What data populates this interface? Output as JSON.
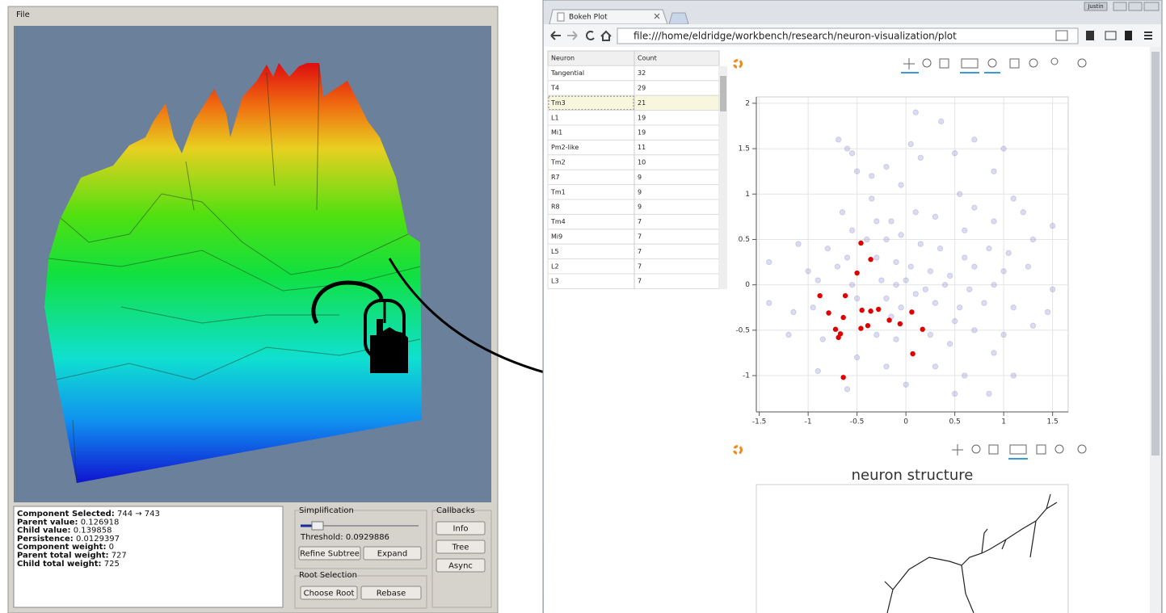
{
  "app": {
    "menu": "File",
    "info": [
      [
        "Component Selected:",
        "744 → 743"
      ],
      [
        "Parent value:",
        "0.126918"
      ],
      [
        "Child value:",
        "0.139858"
      ],
      [
        "Persistence:",
        "0.0129397"
      ],
      [
        "Component weight:",
        "0"
      ],
      [
        "Parent total weight:",
        "727"
      ],
      [
        "Child total weight:",
        "725"
      ]
    ],
    "simplification": {
      "title": "Simplification",
      "threshold_label": "Threshold:",
      "threshold": "0.0929886",
      "buttons": [
        "Refine Subtree",
        "Expand"
      ]
    },
    "root_selection": {
      "title": "Root Selection",
      "buttons": [
        "Choose Root",
        "Rebase"
      ]
    },
    "callbacks": {
      "title": "Callbacks",
      "buttons": [
        "Info",
        "Tree",
        "Async"
      ]
    }
  },
  "browser": {
    "user": "Justin",
    "tab": "Bokeh Plot",
    "url": "file:///home/eldridge/workbench/research/neuron-visualization/plot"
  },
  "table": {
    "headers": [
      "Neuron",
      "Count"
    ],
    "rows": [
      [
        "Tangential",
        "32"
      ],
      [
        "T4",
        "29"
      ],
      [
        "Tm3",
        "21"
      ],
      [
        "L1",
        "19"
      ],
      [
        "Mi1",
        "19"
      ],
      [
        "Pm2-like",
        "11"
      ],
      [
        "Tm2",
        "10"
      ],
      [
        "R7",
        "9"
      ],
      [
        "Tm1",
        "9"
      ],
      [
        "R8",
        "9"
      ],
      [
        "Tm4",
        "7"
      ],
      [
        "Mi9",
        "7"
      ],
      [
        "L5",
        "7"
      ],
      [
        "L2",
        "7"
      ],
      [
        "L3",
        "7"
      ]
    ]
  },
  "chart_data": {
    "type": "scatter",
    "xlim": [
      -1.53,
      1.66
    ],
    "ylim": [
      -1.4,
      2.07
    ],
    "xticks": [
      -1.5,
      -1,
      -0.5,
      0,
      0.5,
      1,
      1.5
    ],
    "yticks": [
      -1,
      -0.5,
      0,
      0.5,
      1,
      1.5,
      2
    ],
    "grid": true,
    "series": [
      {
        "color": "#8080c8",
        "x": [
          0.1,
          0.36,
          -0.69,
          -0.6,
          -0.55,
          -0.5,
          -0.35,
          -0.2,
          0.05,
          0.15,
          0.5,
          0.7,
          1.0,
          0.9,
          -0.05,
          -0.35,
          0.55,
          0.7,
          1.1,
          -0.65,
          -0.55,
          -0.3,
          -0.15,
          0.1,
          0.3,
          0.6,
          0.9,
          1.2,
          1.5,
          -1.1,
          -0.8,
          -0.6,
          -0.4,
          -0.2,
          -0.05,
          0.15,
          0.35,
          0.6,
          0.85,
          1.05,
          1.3,
          -1.4,
          -1.0,
          -0.7,
          -0.3,
          -0.1,
          0.05,
          0.25,
          0.45,
          0.7,
          1.0,
          1.25,
          -0.9,
          -0.55,
          -0.25,
          -0.1,
          0.0,
          0.2,
          0.4,
          0.65,
          0.9,
          1.5,
          -1.4,
          -1.15,
          -0.95,
          -0.5,
          -0.2,
          0.1,
          0.3,
          0.55,
          0.8,
          1.1,
          1.45,
          -1.2,
          -0.85,
          -0.3,
          -0.1,
          0.25,
          0.45,
          0.7,
          1.0,
          1.3,
          -0.9,
          -0.5,
          -0.2,
          0.0,
          0.3,
          0.6,
          0.9,
          1.1,
          -0.6,
          0.5,
          0.85,
          -0.15,
          -0.05,
          0.5
        ],
        "y": [
          1.9,
          1.8,
          1.6,
          1.5,
          1.45,
          1.25,
          1.2,
          1.3,
          1.55,
          1.4,
          1.45,
          1.6,
          1.5,
          1.25,
          1.1,
          0.95,
          1.0,
          0.85,
          0.95,
          0.8,
          0.6,
          0.7,
          0.7,
          0.8,
          0.75,
          0.6,
          0.7,
          0.8,
          0.65,
          0.45,
          0.4,
          0.3,
          0.5,
          0.5,
          0.55,
          0.45,
          0.4,
          0.3,
          0.4,
          0.35,
          0.5,
          0.25,
          0.15,
          0.2,
          0.3,
          0.25,
          0.2,
          0.15,
          0.1,
          0.2,
          0.15,
          0.2,
          0.05,
          0.0,
          0.05,
          0.0,
          0.05,
          -0.05,
          0.0,
          -0.05,
          0.0,
          -0.05,
          -0.2,
          -0.3,
          -0.25,
          -0.15,
          -0.15,
          -0.1,
          -0.2,
          -0.25,
          -0.2,
          -0.25,
          -0.3,
          -0.55,
          -0.6,
          -0.55,
          -0.6,
          -0.55,
          -0.65,
          -0.5,
          -0.55,
          -0.45,
          -0.95,
          -0.8,
          -0.9,
          -1.1,
          -0.9,
          -1.0,
          -0.75,
          -1.0,
          -1.15,
          -1.2,
          -1.2,
          -0.35,
          -0.25,
          -0.4
        ]
      },
      {
        "color": "#e00000",
        "x": [
          -0.46,
          -0.36,
          -0.5,
          -0.88,
          -0.62,
          -0.79,
          -0.64,
          -0.45,
          -0.36,
          -0.28,
          -0.17,
          -0.06,
          0.06,
          0.17,
          -0.72,
          -0.67,
          -0.69,
          -0.46,
          -0.39,
          0.07,
          -0.64
        ],
        "y": [
          0.46,
          0.28,
          0.13,
          -0.12,
          -0.12,
          -0.31,
          -0.36,
          -0.28,
          -0.29,
          -0.27,
          -0.39,
          -0.43,
          -0.3,
          -0.49,
          -0.49,
          -0.54,
          -0.58,
          -0.48,
          -0.45,
          -0.76,
          -1.02
        ]
      }
    ]
  },
  "structure_plot": {
    "title": "neuron structure"
  }
}
